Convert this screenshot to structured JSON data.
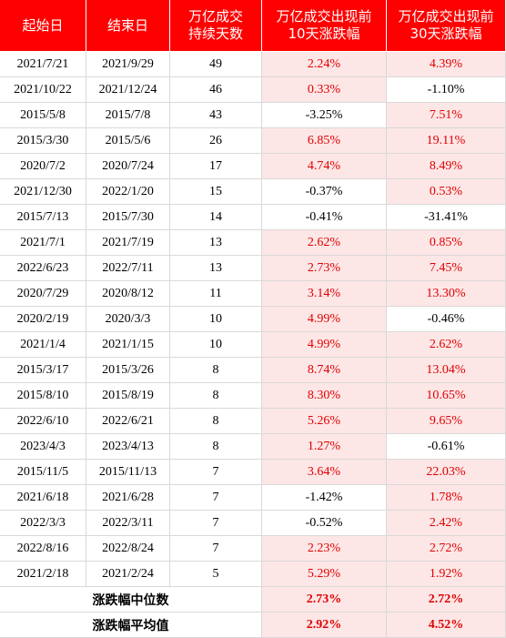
{
  "table": {
    "header": [
      [
        "起始日"
      ],
      [
        "结束日"
      ],
      [
        "万亿成交",
        "持续天数"
      ],
      [
        "万亿成交出现前",
        "10天涨跌幅"
      ],
      [
        "万亿成交出现前",
        "30天涨跌幅"
      ]
    ],
    "rows": [
      [
        "2021/7/21",
        "2021/9/29",
        "49",
        "2.24%",
        "4.39%"
      ],
      [
        "2021/10/22",
        "2021/12/24",
        "46",
        "0.33%",
        "-1.10%"
      ],
      [
        "2015/5/8",
        "2015/7/8",
        "43",
        "-3.25%",
        "7.51%"
      ],
      [
        "2015/3/30",
        "2015/5/6",
        "26",
        "6.85%",
        "19.11%"
      ],
      [
        "2020/7/2",
        "2020/7/24",
        "17",
        "4.74%",
        "8.49%"
      ],
      [
        "2021/12/30",
        "2022/1/20",
        "15",
        "-0.37%",
        "0.53%"
      ],
      [
        "2015/7/13",
        "2015/7/30",
        "14",
        "-0.41%",
        "-31.41%"
      ],
      [
        "2021/7/1",
        "2021/7/19",
        "13",
        "2.62%",
        "0.85%"
      ],
      [
        "2022/6/23",
        "2022/7/11",
        "13",
        "2.73%",
        "7.45%"
      ],
      [
        "2020/7/29",
        "2020/8/12",
        "11",
        "3.14%",
        "13.30%"
      ],
      [
        "2020/2/19",
        "2020/3/3",
        "10",
        "4.99%",
        "-0.46%"
      ],
      [
        "2021/1/4",
        "2021/1/15",
        "10",
        "4.99%",
        "2.62%"
      ],
      [
        "2015/3/17",
        "2015/3/26",
        "8",
        "8.74%",
        "13.04%"
      ],
      [
        "2015/8/10",
        "2015/8/19",
        "8",
        "8.30%",
        "10.65%"
      ],
      [
        "2022/6/10",
        "2022/6/21",
        "8",
        "5.26%",
        "9.65%"
      ],
      [
        "2023/4/3",
        "2023/4/13",
        "8",
        "1.27%",
        "-0.61%"
      ],
      [
        "2015/11/5",
        "2015/11/13",
        "7",
        "3.64%",
        "22.03%"
      ],
      [
        "2021/6/18",
        "2021/6/28",
        "7",
        "-1.42%",
        "1.78%"
      ],
      [
        "2022/3/3",
        "2022/3/11",
        "7",
        "-0.52%",
        "2.42%"
      ],
      [
        "2022/8/16",
        "2022/8/24",
        "7",
        "2.23%",
        "2.72%"
      ],
      [
        "2021/2/18",
        "2021/2/24",
        "5",
        "5.29%",
        "1.92%"
      ]
    ],
    "summary": [
      {
        "label": "涨跌幅中位数",
        "values": [
          "2.73%",
          "2.72%"
        ]
      },
      {
        "label": "涨跌幅平均值",
        "values": [
          "2.92%",
          "4.52%"
        ]
      }
    ]
  }
}
